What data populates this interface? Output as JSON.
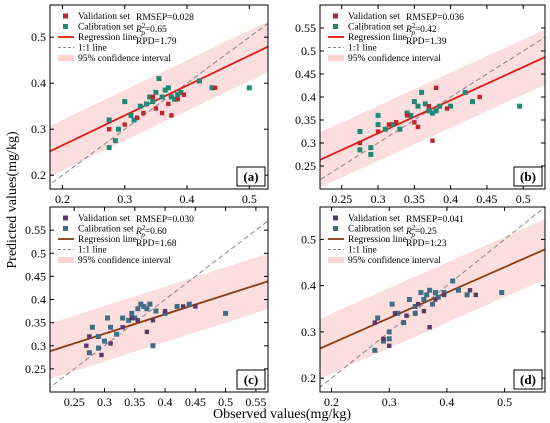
{
  "figure": {
    "shared_ylabel": "Predicted values(mg/kg)",
    "shared_xlabel": "Observed values(mg/kg)"
  },
  "colors": {
    "validation_top": "#c0242e",
    "calibration_top": "#1e8a76",
    "regression_top": "#e31a1c",
    "validation_bottom": "#5a3a68",
    "calibration_bottom": "#3f6e86",
    "regression_bottom": "#8b3a12",
    "band": "#fbd3d3",
    "oneone": "#888888"
  },
  "chart_data": [
    {
      "type": "scatter",
      "label": "(a)",
      "scheme": "top",
      "xlim": [
        0.18,
        0.53
      ],
      "ylim": [
        0.17,
        0.57
      ],
      "xticks": [
        "0.2",
        "0.3",
        "0.4",
        "0.5"
      ],
      "yticks": [
        "0.2",
        "0.3",
        "0.4",
        "0.5"
      ],
      "legend": [
        "Validation set",
        "Calibration set",
        "Regression line",
        "1:1 line",
        "95% confidence interval"
      ],
      "stats": {
        "rmsep": "RMSEP=0.028",
        "r2": "=0.65",
        "rpd": "RPD=1.79"
      },
      "regression": {
        "slope": 0.65,
        "intercept": 0.135
      },
      "band_halfwidth": 0.055,
      "validation": [
        [
          0.275,
          0.3
        ],
        [
          0.3,
          0.31
        ],
        [
          0.32,
          0.325
        ],
        [
          0.35,
          0.345
        ],
        [
          0.36,
          0.335
        ],
        [
          0.37,
          0.355
        ],
        [
          0.375,
          0.33
        ],
        [
          0.385,
          0.365
        ],
        [
          0.395,
          0.375
        ],
        [
          0.445,
          0.39
        ],
        [
          0.345,
          0.37
        ],
        [
          0.33,
          0.335
        ]
      ],
      "calibration": [
        [
          0.275,
          0.26
        ],
        [
          0.275,
          0.32
        ],
        [
          0.29,
          0.3
        ],
        [
          0.3,
          0.36
        ],
        [
          0.31,
          0.33
        ],
        [
          0.315,
          0.32
        ],
        [
          0.325,
          0.35
        ],
        [
          0.335,
          0.355
        ],
        [
          0.34,
          0.37
        ],
        [
          0.35,
          0.38
        ],
        [
          0.355,
          0.41
        ],
        [
          0.36,
          0.37
        ],
        [
          0.365,
          0.385
        ],
        [
          0.37,
          0.39
        ],
        [
          0.375,
          0.37
        ],
        [
          0.38,
          0.365
        ],
        [
          0.385,
          0.375
        ],
        [
          0.39,
          0.38
        ],
        [
          0.42,
          0.405
        ],
        [
          0.44,
          0.39
        ],
        [
          0.5,
          0.39
        ],
        [
          0.285,
          0.275
        ],
        [
          0.345,
          0.36
        ]
      ]
    },
    {
      "type": "scatter",
      "label": "(b)",
      "scheme": "top",
      "xlim": [
        0.22,
        0.53
      ],
      "ylim": [
        0.2,
        0.6
      ],
      "xticks": [
        "0.25",
        "0.3",
        "0.35",
        "0.4",
        "0.45",
        "0.5"
      ],
      "yticks": [
        "0.25",
        "0.3",
        "0.35",
        "0.4",
        "0.45",
        "0.5",
        "0.55"
      ],
      "legend": [
        "Validation set",
        "Calibration set",
        "Regression line",
        "1:1 line",
        "95% confidence interval"
      ],
      "stats": {
        "rmsep": "RMSEP=0.036",
        "r2": "=0.42",
        "rpd": "RPD=1.39"
      },
      "regression": {
        "slope": 0.72,
        "intercept": 0.105
      },
      "band_halfwidth": 0.06,
      "validation": [
        [
          0.275,
          0.3
        ],
        [
          0.3,
          0.325
        ],
        [
          0.315,
          0.34
        ],
        [
          0.325,
          0.345
        ],
        [
          0.34,
          0.36
        ],
        [
          0.355,
          0.335
        ],
        [
          0.37,
          0.38
        ],
        [
          0.375,
          0.305
        ],
        [
          0.38,
          0.42
        ],
        [
          0.395,
          0.375
        ],
        [
          0.44,
          0.4
        ],
        [
          0.35,
          0.345
        ]
      ],
      "calibration": [
        [
          0.275,
          0.285
        ],
        [
          0.275,
          0.325
        ],
        [
          0.29,
          0.29
        ],
        [
          0.3,
          0.34
        ],
        [
          0.3,
          0.36
        ],
        [
          0.31,
          0.33
        ],
        [
          0.32,
          0.34
        ],
        [
          0.33,
          0.33
        ],
        [
          0.34,
          0.365
        ],
        [
          0.35,
          0.39
        ],
        [
          0.355,
          0.38
        ],
        [
          0.36,
          0.41
        ],
        [
          0.365,
          0.385
        ],
        [
          0.37,
          0.37
        ],
        [
          0.375,
          0.365
        ],
        [
          0.38,
          0.37
        ],
        [
          0.385,
          0.38
        ],
        [
          0.4,
          0.38
        ],
        [
          0.42,
          0.41
        ],
        [
          0.43,
          0.39
        ],
        [
          0.495,
          0.38
        ],
        [
          0.29,
          0.275
        ],
        [
          0.345,
          0.36
        ]
      ]
    },
    {
      "type": "scatter",
      "label": "(c)",
      "scheme": "bottom",
      "xlim": [
        0.21,
        0.57
      ],
      "ylim": [
        0.2,
        0.6
      ],
      "xticks": [
        "0.25",
        "0.3",
        "0.35",
        "0.4",
        "0.45",
        "0.5",
        "0.55"
      ],
      "yticks": [
        "0.25",
        "0.3",
        "0.35",
        "0.4",
        "0.45",
        "0.5",
        "0.55"
      ],
      "legend": [
        "Validation set",
        "Calibration set",
        "Regression line",
        "1:1 line",
        "95% confidence interval"
      ],
      "stats": {
        "rmsep": "RMSEP=0.030",
        "r2": "=0.60",
        "rpd": "RPD=1.68"
      },
      "regression": {
        "slope": 0.42,
        "intercept": 0.2
      },
      "band_halfwidth": 0.06,
      "validation": [
        [
          0.27,
          0.3
        ],
        [
          0.275,
          0.32
        ],
        [
          0.295,
          0.28
        ],
        [
          0.31,
          0.305
        ],
        [
          0.33,
          0.34
        ],
        [
          0.345,
          0.36
        ],
        [
          0.355,
          0.355
        ],
        [
          0.37,
          0.33
        ],
        [
          0.38,
          0.355
        ],
        [
          0.4,
          0.375
        ],
        [
          0.43,
          0.385
        ],
        [
          0.45,
          0.385
        ]
      ],
      "calibration": [
        [
          0.275,
          0.285
        ],
        [
          0.28,
          0.34
        ],
        [
          0.29,
          0.32
        ],
        [
          0.3,
          0.31
        ],
        [
          0.305,
          0.36
        ],
        [
          0.31,
          0.34
        ],
        [
          0.32,
          0.325
        ],
        [
          0.33,
          0.36
        ],
        [
          0.34,
          0.355
        ],
        [
          0.35,
          0.36
        ],
        [
          0.355,
          0.38
        ],
        [
          0.36,
          0.39
        ],
        [
          0.365,
          0.385
        ],
        [
          0.37,
          0.38
        ],
        [
          0.375,
          0.39
        ],
        [
          0.38,
          0.3
        ],
        [
          0.385,
          0.375
        ],
        [
          0.4,
          0.37
        ],
        [
          0.42,
          0.385
        ],
        [
          0.44,
          0.39
        ],
        [
          0.5,
          0.37
        ],
        [
          0.345,
          0.37
        ],
        [
          0.29,
          0.295
        ]
      ]
    },
    {
      "type": "scatter",
      "label": "(d)",
      "scheme": "bottom",
      "xlim": [
        0.18,
        0.57
      ],
      "ylim": [
        0.17,
        0.57
      ],
      "xticks": [
        "0.2",
        "0.3",
        "0.4",
        "0.5"
      ],
      "yticks": [
        "0.2",
        "0.3",
        "0.4",
        "0.5"
      ],
      "legend": [
        "Validation set",
        "Calibration set",
        "Regression line",
        "1:1 line",
        "95% confidence interval"
      ],
      "stats": {
        "rmsep": "RMSEP=0.041",
        "r2": "=0.25",
        "rpd": "RPD=1.23"
      },
      "regression": {
        "slope": 0.55,
        "intercept": 0.165
      },
      "band_halfwidth": 0.065,
      "validation": [
        [
          0.275,
          0.32
        ],
        [
          0.29,
          0.285
        ],
        [
          0.3,
          0.27
        ],
        [
          0.31,
          0.34
        ],
        [
          0.33,
          0.335
        ],
        [
          0.35,
          0.36
        ],
        [
          0.36,
          0.345
        ],
        [
          0.37,
          0.31
        ],
        [
          0.38,
          0.37
        ],
        [
          0.395,
          0.38
        ],
        [
          0.44,
          0.39
        ],
        [
          0.45,
          0.38
        ]
      ],
      "calibration": [
        [
          0.275,
          0.26
        ],
        [
          0.28,
          0.33
        ],
        [
          0.29,
          0.28
        ],
        [
          0.3,
          0.3
        ],
        [
          0.305,
          0.36
        ],
        [
          0.315,
          0.34
        ],
        [
          0.325,
          0.32
        ],
        [
          0.335,
          0.37
        ],
        [
          0.345,
          0.355
        ],
        [
          0.355,
          0.385
        ],
        [
          0.36,
          0.37
        ],
        [
          0.365,
          0.38
        ],
        [
          0.37,
          0.39
        ],
        [
          0.375,
          0.36
        ],
        [
          0.38,
          0.385
        ],
        [
          0.385,
          0.375
        ],
        [
          0.395,
          0.385
        ],
        [
          0.41,
          0.41
        ],
        [
          0.42,
          0.39
        ],
        [
          0.435,
          0.38
        ],
        [
          0.495,
          0.385
        ],
        [
          0.345,
          0.34
        ],
        [
          0.3,
          0.285
        ]
      ]
    }
  ]
}
